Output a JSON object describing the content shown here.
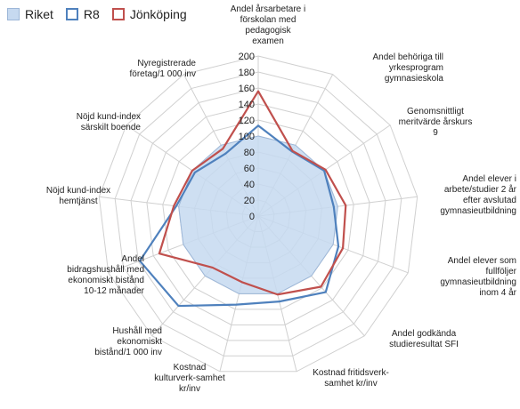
{
  "chart_data": {
    "type": "radar",
    "title": "",
    "legend_position": "top-left",
    "rlim": [
      0,
      200
    ],
    "r_ticks": [
      "0",
      "20",
      "40",
      "60",
      "80",
      "100",
      "120",
      "140",
      "160",
      "180",
      "200"
    ],
    "categories": [
      "Andel årsarbetare i\nförskolan med\npedagogisk\nexamen",
      "Andel behöriga till\nyrkesprogram\ngymnasieskola",
      "Genomsnittligt\nmeritvärde årskurs\n9",
      "Andel elever i\narbete/studier 2 år\nefter avslutad\ngymnasieutbildning",
      "Andel elever som\nfullföljer\ngymnasieutbildning\ninom 4 år",
      "Andel godkända\nstudieresultat SFI",
      "Kostnad fritidsverk-\nsamhet kr/inv",
      "Kostnad\nkulturverk-samhet\nkr/inv",
      "Hushåll med\nekonomiskt\nbistånd/1 000 inv",
      "Andel\nbidragshushåll med\nekonomiskt bistånd\n10-12 månader",
      "Nöjd kund-index\nhemtjänst",
      "Nöjd kund-index\nsärskilt boende",
      "Nyregistrerade\nföretag/1 000 inv"
    ],
    "series": [
      {
        "name": "Riket",
        "values": [
          100,
          100,
          100,
          100,
          100,
          100,
          100,
          100,
          100,
          100,
          100,
          100,
          100
        ],
        "style": "area",
        "color": "#c6d9f0",
        "edge": "#9db7d8"
      },
      {
        "name": "R8",
        "values": [
          113,
          91,
          100,
          95,
          107,
          127,
          110,
          114,
          150,
          158,
          103,
          96,
          88
        ],
        "style": "line",
        "color": "#4f81bd"
      },
      {
        "name": "Jönköping",
        "values": [
          156,
          92,
          102,
          110,
          113,
          118,
          101,
          85,
          86,
          132,
          106,
          100,
          95
        ],
        "style": "line",
        "color": "#c0504d"
      }
    ]
  }
}
